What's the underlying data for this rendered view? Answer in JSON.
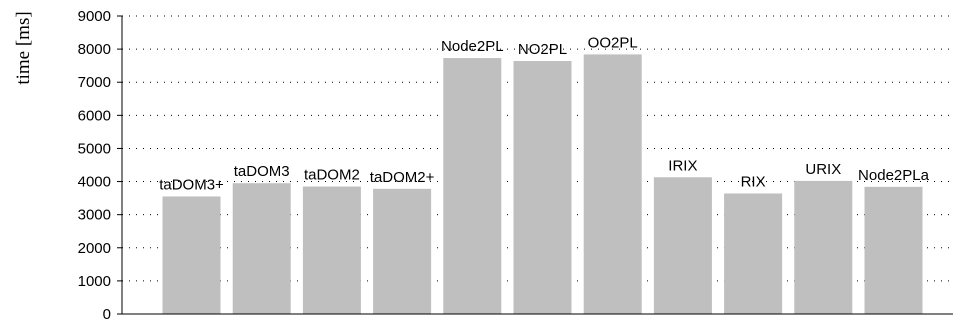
{
  "chart_data": {
    "type": "bar",
    "ylabel": "time [ms]",
    "xlabel": "",
    "ylim": [
      0,
      9000
    ],
    "yticks": [
      0,
      1000,
      2000,
      3000,
      4000,
      5000,
      6000,
      7000,
      8000,
      9000
    ],
    "categories": [
      "taDOM3+",
      "taDOM3",
      "taDOM2",
      "taDOM2+",
      "Node2PL",
      "NO2PL",
      "OO2PL",
      "IRIX",
      "RIX",
      "URIX",
      "Node2PLa"
    ],
    "values": [
      3550,
      3950,
      3850,
      3780,
      7730,
      7640,
      7840,
      4130,
      3640,
      4020,
      3840
    ],
    "grid": true,
    "bar_color": "#bfbfbf",
    "grid_color": "#000000"
  }
}
